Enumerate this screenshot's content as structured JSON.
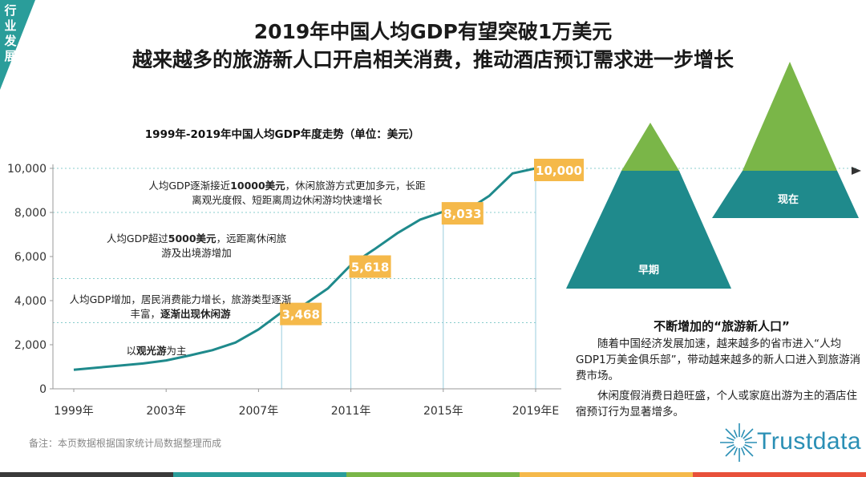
{
  "corner_label": "行业发展",
  "title_line1": "2019年中国人均GDP有望突破1万美元",
  "title_line2": "越来越多的旅游新人口开启相关消费，推动酒店预订需求进一步增长",
  "note": "备注：本页数据根据国家统计局数据整理而成",
  "side": {
    "title": "不断增加的“旅游新人口”",
    "para1": "随着中国经济发展加速，越来越多的省市进入“人均GDP1万美金俱乐部”，带动越来越多的新人口进入到旅游消费市场。",
    "para2": "休闲度假消费日趋旺盛，个人或家庭出游为主的酒店住宿预订行为显著增多。",
    "mountain_left_label": "早期",
    "mountain_right_label": "现在"
  },
  "logo": {
    "text": "Trustdata",
    "color": "#2a8fb5"
  },
  "colors": {
    "accent": "#2a9d9a",
    "label_box": "#f5b94a",
    "mountain_top": "#7ab648",
    "mountain_base": "#1f8a8c"
  },
  "chart_data": {
    "type": "line",
    "title": "1999年-2019年中国人均GDP年度走势（单位：美元）",
    "x": [
      1999,
      2000,
      2001,
      2002,
      2003,
      2004,
      2005,
      2006,
      2007,
      2008,
      2009,
      2010,
      2011,
      2012,
      2013,
      2014,
      2015,
      2016,
      2017,
      2018,
      2019
    ],
    "series": [
      {
        "values": [
          864,
          959,
          1053,
          1148,
          1288,
          1508,
          1753,
          2099,
          2694,
          3468,
          3832,
          4550,
          5618,
          6316,
          7050,
          7678,
          8033,
          8078,
          8759,
          9770,
          10000
        ]
      }
    ],
    "ylim": [
      0,
      10000
    ],
    "yticks": [
      "0",
      "2,000",
      "4,000",
      "6,000",
      "8,000",
      "10,000"
    ],
    "ytick_values": [
      0,
      2000,
      4000,
      6000,
      8000,
      10000
    ],
    "xticks": [
      "1999年",
      "2003年",
      "2007年",
      "2011年",
      "2015年",
      "2019年E"
    ],
    "xtick_values": [
      1999,
      2003,
      2007,
      2011,
      2015,
      2019
    ],
    "data_labels": [
      {
        "x": 2008,
        "y": 3468,
        "text": "3,468"
      },
      {
        "x": 2011,
        "y": 5618,
        "text": "5,618"
      },
      {
        "x": 2015,
        "y": 8033,
        "text": "8,033"
      },
      {
        "x": 2019,
        "y": 10000,
        "text": "10,000"
      }
    ],
    "reference_levels": [
      3000,
      5000,
      8000,
      10000
    ],
    "annotations": [
      {
        "lines": [
          "以观光游为主"
        ],
        "bold": "观光游"
      },
      {
        "lines": [
          "人均GDP增加，居民消费能力增长，旅游类型逐渐",
          "丰富，逐渐出现休闲游"
        ],
        "bold": "逐渐出现休闲游"
      },
      {
        "lines": [
          "人均GDP超过5000美元，远距离休闲旅",
          "游及出境游增加"
        ],
        "bold": "5000美元"
      },
      {
        "lines": [
          "人均GDP逐渐接近10000美元，休闲旅游方式更加多元，长距",
          "离观光度假、短距离周边休闲游均快速增长"
        ],
        "bold": "10000美元"
      }
    ],
    "grid": false,
    "legend": "none"
  }
}
